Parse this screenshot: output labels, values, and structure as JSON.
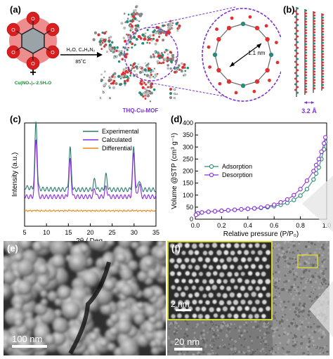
{
  "panels": {
    "a": {
      "label": "(a)",
      "reagent_line1": "H₂O, C₄H₈N₂",
      "reagent_line2": "85˚C",
      "plus": "+",
      "salt": "Cu(NO₃)₂·2.5H₂O",
      "framework_name": "THQ-Cu-MOF",
      "pore_size": "1.1 nm",
      "axis_b": "b",
      "axis_a": "a",
      "axis_c": "c",
      "legend_o": "O",
      "legend_cu": "Cu",
      "legend_c": "C"
    },
    "b": {
      "label": "(b)",
      "spacing": "3.2 Å"
    },
    "c": {
      "label": "(c)"
    },
    "d": {
      "label": "(d)"
    },
    "e": {
      "label": "(e)",
      "scalebar": "100 nm"
    },
    "f": {
      "label": "(f)",
      "scalebar": "20 nm",
      "inset_scalebar": "2 nm"
    }
  },
  "colors": {
    "experimental": "#2a7a6f",
    "calculated": "#8a2be2",
    "differential": "#e8891c",
    "adsorption": "#2a8a7a",
    "desorption": "#8a2be2",
    "inset_frame": "#e6e62e",
    "pore_circle": "#7a33cc"
  },
  "chart_data": [
    {
      "type": "line",
      "xlabel": "2θ / Deg.",
      "ylabel": "Intensity (a.u.)",
      "xlim": [
        5,
        35
      ],
      "x_ticks": [
        5,
        10,
        15,
        20,
        25,
        30,
        35
      ],
      "legend": "top-right",
      "series": [
        {
          "name": "Experimental",
          "peaks": [
            [
              7.6,
              1.0
            ],
            [
              15.4,
              0.62
            ],
            [
              21.0,
              0.15
            ],
            [
              23.6,
              0.22
            ],
            [
              29.9,
              0.62
            ],
            [
              31.2,
              0.15
            ]
          ]
        },
        {
          "name": "Calculated",
          "peaks": [
            [
              7.6,
              0.88
            ],
            [
              15.4,
              0.55
            ],
            [
              21.0,
              0.12
            ],
            [
              23.6,
              0.15
            ],
            [
              29.9,
              0.65
            ],
            [
              31.2,
              0.2
            ]
          ]
        },
        {
          "name": "Differential",
          "peaks": [
            [
              7.6,
              0.03
            ],
            [
              15.4,
              0.02
            ],
            [
              29.9,
              0.02
            ]
          ]
        }
      ]
    },
    {
      "type": "scatter",
      "xlabel": "Relative pressure (P/P₀)",
      "ylabel": "Volume @STP (cm³ g⁻¹)",
      "xlim": [
        0,
        1.0
      ],
      "ylim": [
        0,
        400
      ],
      "x_ticks": [
        "0.0",
        "0.2",
        "0.4",
        "0.6",
        "0.8",
        "1.0"
      ],
      "y_ticks": [
        "0",
        "50",
        "100",
        "150",
        "200",
        "250",
        "300",
        "350",
        "400"
      ],
      "legend": "top-left",
      "series": [
        {
          "name": "Adsorption",
          "x": [
            0.005,
            0.02,
            0.05,
            0.1,
            0.15,
            0.2,
            0.25,
            0.3,
            0.35,
            0.4,
            0.45,
            0.5,
            0.55,
            0.6,
            0.65,
            0.7,
            0.75,
            0.8,
            0.85,
            0.9,
            0.92,
            0.94,
            0.96,
            0.98,
            0.99
          ],
          "y": [
            18,
            24,
            28,
            31,
            33,
            35,
            37,
            39,
            41,
            43,
            45,
            47,
            50,
            54,
            60,
            68,
            80,
            98,
            125,
            165,
            190,
            215,
            250,
            290,
            320
          ]
        },
        {
          "name": "Desorption",
          "x": [
            0.99,
            0.98,
            0.96,
            0.94,
            0.92,
            0.9,
            0.85,
            0.8,
            0.75,
            0.7,
            0.65,
            0.6,
            0.55,
            0.5,
            0.45,
            0.4,
            0.35,
            0.3,
            0.25,
            0.2,
            0.15,
            0.1,
            0.05,
            0.02,
            0.005
          ],
          "y": [
            340,
            315,
            280,
            250,
            225,
            200,
            160,
            125,
            100,
            82,
            70,
            60,
            53,
            48,
            45,
            43,
            41,
            39,
            37,
            35,
            33,
            31,
            28,
            24,
            18
          ]
        }
      ]
    }
  ]
}
